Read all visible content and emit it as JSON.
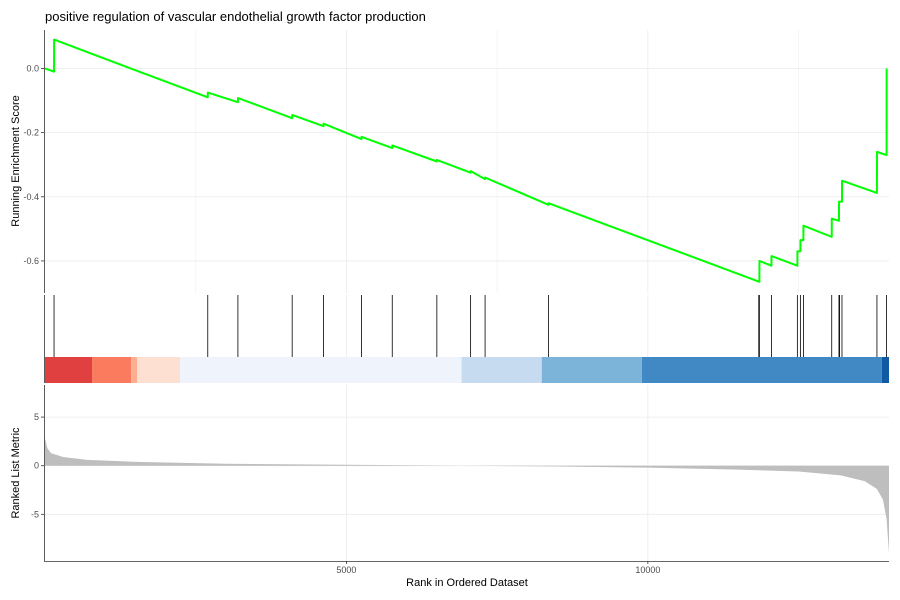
{
  "chart_data": {
    "type": "line",
    "title": "positive regulation of vascular endothelial growth factor production",
    "es_panel": {
      "ylabel": "Running Enrichment Score",
      "y_ticks": [
        0.0,
        -0.2,
        -0.4,
        -0.6
      ],
      "y_tick_labels": [
        "0.0",
        "-0.2",
        "-0.4",
        "-0.6"
      ],
      "ylim": [
        -0.7,
        0.12
      ],
      "line_color": "#00ff00",
      "points": [
        [
          1,
          0.0
        ],
        [
          150,
          -0.01
        ],
        [
          151,
          0.09
        ],
        [
          2700,
          -0.09
        ],
        [
          2701,
          -0.075
        ],
        [
          3200,
          -0.105
        ],
        [
          3201,
          -0.092
        ],
        [
          4100,
          -0.155
        ],
        [
          4101,
          -0.145
        ],
        [
          4620,
          -0.18
        ],
        [
          4621,
          -0.172
        ],
        [
          5250,
          -0.22
        ],
        [
          5251,
          -0.213
        ],
        [
          5760,
          -0.248
        ],
        [
          5761,
          -0.24
        ],
        [
          6500,
          -0.29
        ],
        [
          6501,
          -0.285
        ],
        [
          7060,
          -0.325
        ],
        [
          7061,
          -0.32
        ],
        [
          7300,
          -0.345
        ],
        [
          7301,
          -0.34
        ],
        [
          8350,
          -0.425
        ],
        [
          8351,
          -0.42
        ],
        [
          11850,
          -0.665
        ],
        [
          11851,
          -0.6
        ],
        [
          12050,
          -0.615
        ],
        [
          12051,
          -0.585
        ],
        [
          12480,
          -0.615
        ],
        [
          12481,
          -0.57
        ],
        [
          12530,
          -0.57
        ],
        [
          12531,
          -0.535
        ],
        [
          12580,
          -0.535
        ],
        [
          12581,
          -0.49
        ],
        [
          13050,
          -0.525
        ],
        [
          13051,
          -0.468
        ],
        [
          13170,
          -0.475
        ],
        [
          13171,
          -0.415
        ],
        [
          13220,
          -0.415
        ],
        [
          13221,
          -0.35
        ],
        [
          13800,
          -0.388
        ],
        [
          13801,
          -0.26
        ],
        [
          13960,
          -0.27
        ],
        [
          13961,
          0.0
        ]
      ]
    },
    "hits": [
      150,
      2700,
      3200,
      4100,
      4620,
      5250,
      5760,
      6500,
      7060,
      7300,
      8350,
      11840,
      11850,
      12050,
      12480,
      12530,
      12580,
      13050,
      13170,
      13180,
      13220,
      13800,
      13960
    ],
    "color_bar": {
      "segments": [
        {
          "from": 0,
          "to": 780,
          "color": "#e0403f"
        },
        {
          "from": 780,
          "to": 1430,
          "color": "#fb7b5f"
        },
        {
          "from": 1430,
          "to": 1530,
          "color": "#fcae91"
        },
        {
          "from": 1530,
          "to": 2240,
          "color": "#fee0d2"
        },
        {
          "from": 2240,
          "to": 6910,
          "color": "#eff3fb"
        },
        {
          "from": 6910,
          "to": 8240,
          "color": "#c6dbef"
        },
        {
          "from": 8240,
          "to": 9900,
          "color": "#7bb4d8"
        },
        {
          "from": 9900,
          "to": 13880,
          "color": "#4189c5"
        },
        {
          "from": 13880,
          "to": 14000,
          "color": "#105ba3"
        }
      ]
    },
    "ranked_panel": {
      "ylabel": "Ranked List Metric",
      "y_ticks": [
        5,
        0,
        -5
      ],
      "y_tick_labels": [
        "5",
        "0",
        "-5"
      ],
      "ylim": [
        -9.8,
        8.3
      ],
      "fill_color": "#bebebe",
      "curve": [
        [
          0,
          2.8
        ],
        [
          40,
          1.8
        ],
        [
          100,
          1.3
        ],
        [
          300,
          0.9
        ],
        [
          700,
          0.6
        ],
        [
          1500,
          0.4
        ],
        [
          3000,
          0.2
        ],
        [
          5000,
          0.1
        ],
        [
          6900,
          0.0
        ],
        [
          8500,
          -0.08
        ],
        [
          10000,
          -0.2
        ],
        [
          11500,
          -0.4
        ],
        [
          12500,
          -0.6
        ],
        [
          13200,
          -1.0
        ],
        [
          13600,
          -1.6
        ],
        [
          13800,
          -2.4
        ],
        [
          13900,
          -3.5
        ],
        [
          13960,
          -5.5
        ],
        [
          14000,
          -9.0
        ]
      ]
    },
    "xlabel": "Rank in Ordered Dataset",
    "x_ticks": [
      5000,
      10000
    ],
    "x_tick_labels": [
      "5000",
      "10000"
    ],
    "xlim": [
      0,
      14000
    ],
    "grid": true
  }
}
